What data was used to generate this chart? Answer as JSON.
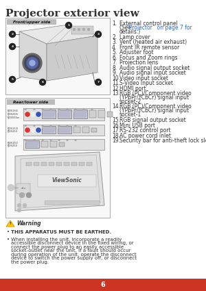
{
  "title": "Projector exterior view",
  "title_fontsize": 11,
  "bg_color": "#ffffff",
  "footer_color": "#cc3322",
  "footer_text": "6",
  "footer_text_color": "#ffffff",
  "front_label": "Front/upper side",
  "rear_label": "Rear/lower side",
  "label_bg": "#bbbbbb",
  "list_items": [
    [
      "External control panel",
      "(See “Projector” on page 7 for",
      "details.)"
    ],
    [
      "Lamp cover"
    ],
    [
      "Vent (heated air exhaust)"
    ],
    [
      "Front IR remote sensor"
    ],
    [
      "Adjuster foot"
    ],
    [
      "Focus and Zoom rings"
    ],
    [
      "Projection lens"
    ],
    [
      "Audio signal output socket"
    ],
    [
      "Audio signal input socket"
    ],
    [
      "Video input socket"
    ],
    [
      "S-Video input socket"
    ],
    [
      "HDMI port"
    ],
    [
      "RGB (PC)/Component video",
      "(YPbPr/YCbCr) signal input",
      "socket-2"
    ],
    [
      "RGB (PC)/Component video",
      "(YPbPr/YCbCr) signal input",
      "socket-1"
    ],
    [
      "RGB signal output socket"
    ],
    [
      "Mini USB port"
    ],
    [
      "RS-232 control port"
    ],
    [
      "AC power cord inlet"
    ],
    [
      "Security bar for anti-theft lock slot"
    ]
  ],
  "link_color": "#3366cc",
  "warning_title": "Warning",
  "warning_item1": "THIS APPARATUS MUST BE EARTHED.",
  "warning_item2": "When installing the unit, incorporate a readily accessible disconnect device in the fixed wiring, or connect the power plug to an easily accessible socket-outlet near the unit. If a fault should occur during operation of the unit, operate the disconnect device to switch the power supply off, or disconnect the power plug.",
  "text_color": "#333333",
  "small_fontsize": 5.0,
  "list_fontsize": 5.5,
  "row_models": [
    "PJD5155/\nPJD5255/\nPJD5555w",
    "PJD5153/\nPJD5253",
    "PJD5151/\nPJD5250"
  ]
}
